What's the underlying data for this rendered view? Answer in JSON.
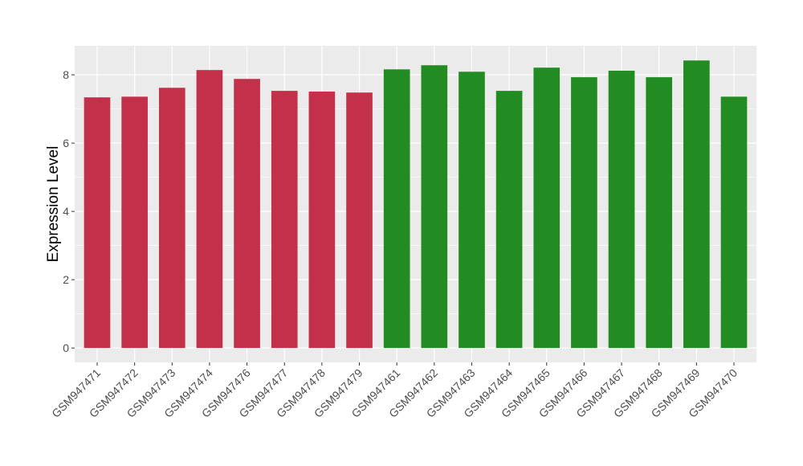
{
  "chart_data": {
    "type": "bar",
    "title": "",
    "xlabel": "",
    "ylabel": "Expression Level",
    "ylim": [
      -0.42,
      8.85
    ],
    "yticks": [
      0,
      2,
      4,
      6,
      8
    ],
    "grid": true,
    "categories": [
      "GSM947471",
      "GSM947472",
      "GSM947473",
      "GSM947474",
      "GSM947476",
      "GSM947477",
      "GSM947478",
      "GSM947479",
      "GSM947461",
      "GSM947462",
      "GSM947463",
      "GSM947464",
      "GSM947465",
      "GSM947466",
      "GSM947467",
      "GSM947468",
      "GSM947469",
      "GSM947470"
    ],
    "values": [
      7.34,
      7.36,
      7.62,
      8.14,
      7.88,
      7.53,
      7.51,
      7.48,
      8.16,
      8.28,
      8.09,
      7.53,
      8.21,
      7.93,
      8.12,
      7.93,
      8.42,
      7.36
    ],
    "groups": [
      "a",
      "a",
      "a",
      "a",
      "a",
      "a",
      "a",
      "a",
      "b",
      "b",
      "b",
      "b",
      "b",
      "b",
      "b",
      "b",
      "b",
      "b"
    ],
    "colors": {
      "a": "#C3304A",
      "b": "#228B22"
    }
  }
}
